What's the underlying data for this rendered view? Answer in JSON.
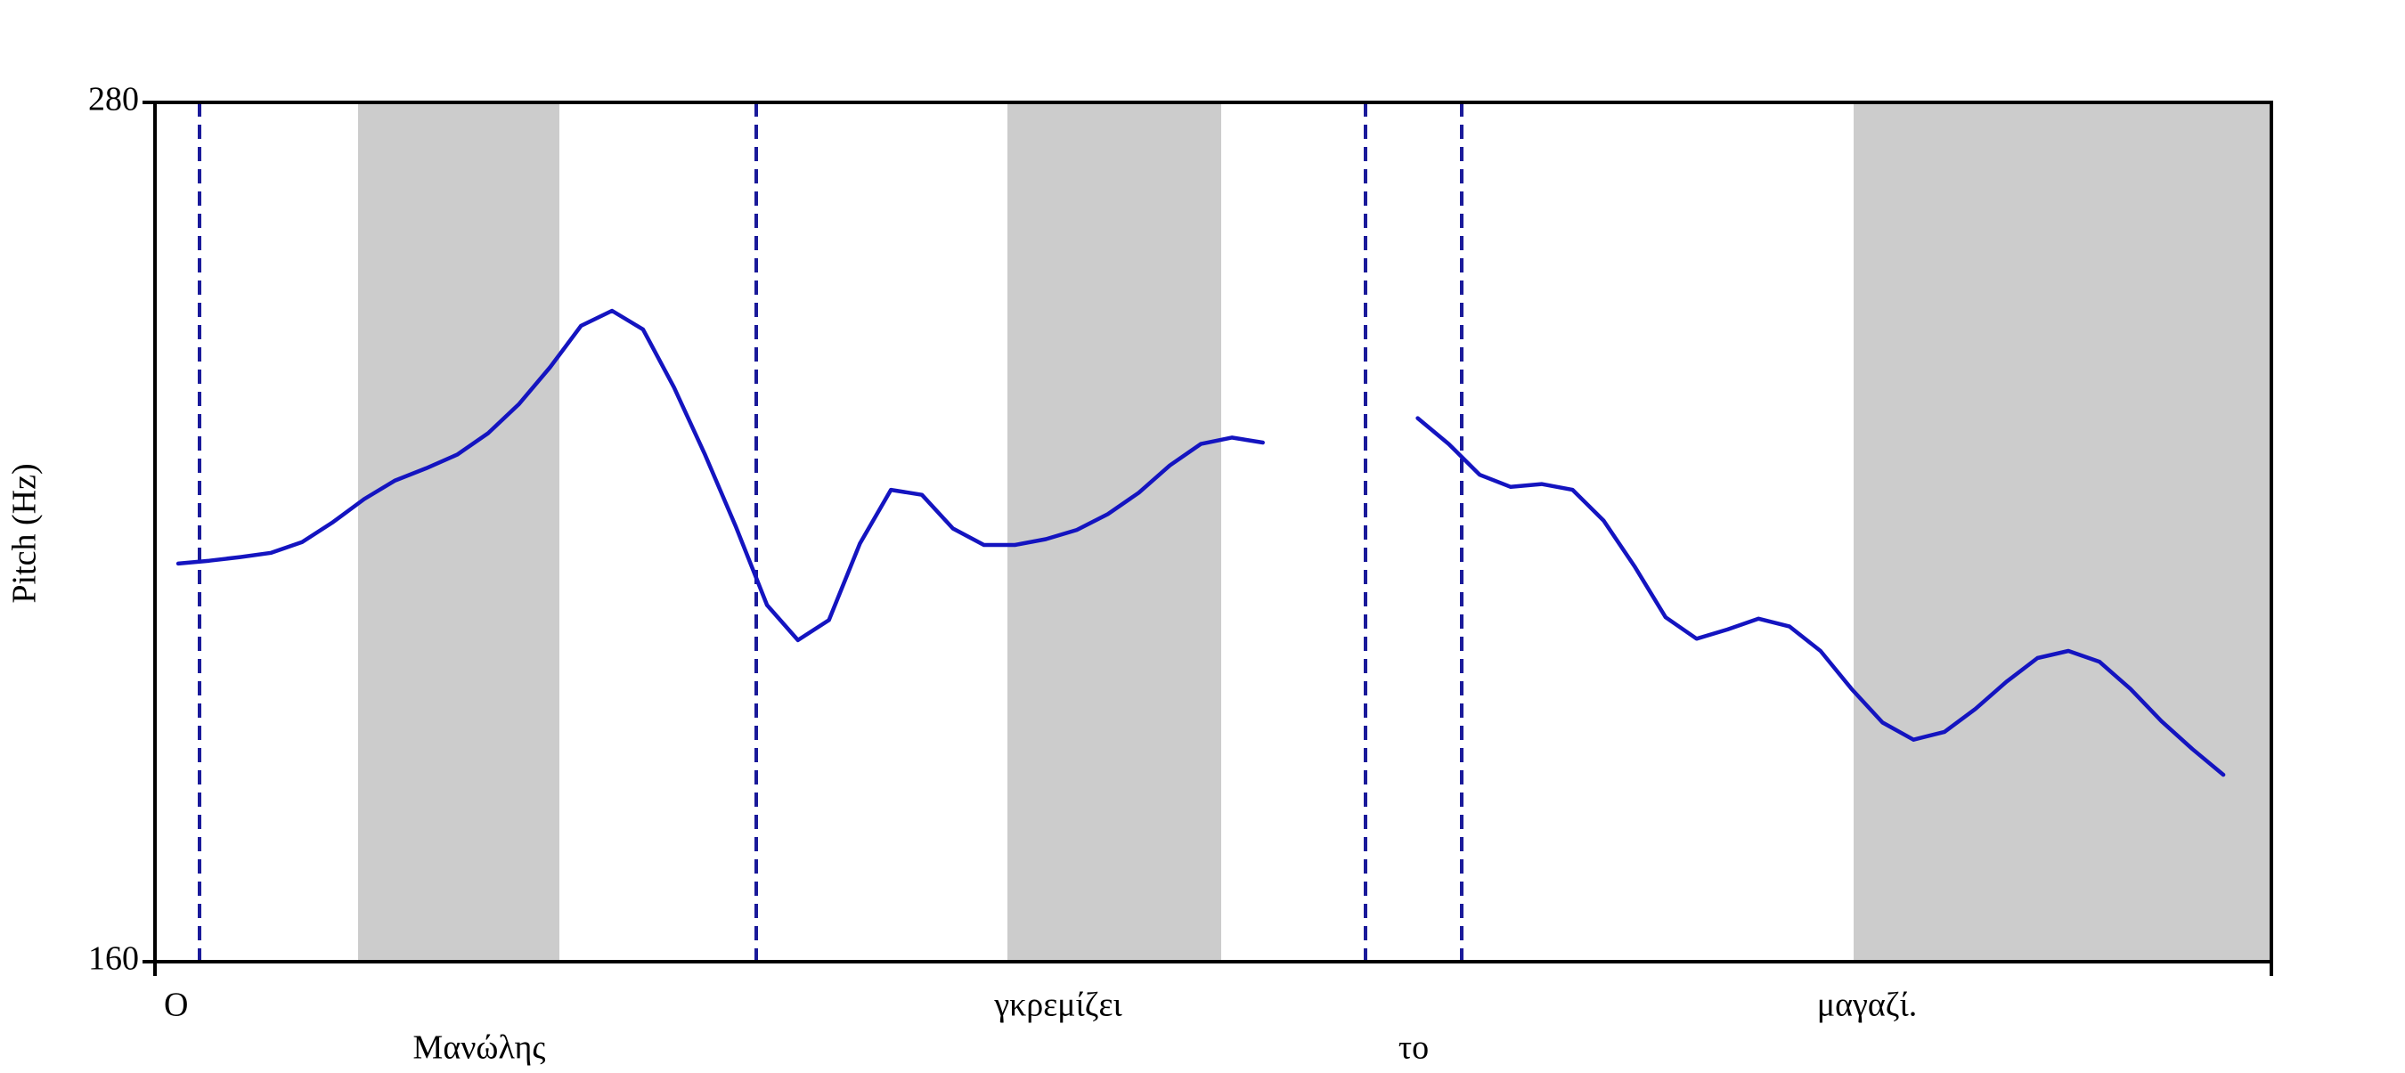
{
  "chart_data": {
    "type": "line",
    "y_label": "Pitch (Hz)",
    "ylim": [
      160,
      280
    ],
    "yticks": [
      160,
      280
    ],
    "words": [
      "Ο",
      "Μανώλης",
      "γκρεμίζει",
      "το",
      "μαγαζί."
    ],
    "series": [
      {
        "color": "#1414c0",
        "values": [
          215.6,
          216.0,
          216.5,
          217.1,
          218.6,
          221.4,
          224.6,
          227.2,
          228.9,
          230.8,
          233.8,
          237.9,
          243.0,
          248.8,
          250.9,
          248.3,
          240.2,
          230.8,
          220.7,
          209.8,
          204.9,
          207.7,
          218.4,
          225.9,
          225.2,
          220.5,
          218.2,
          218.2,
          219.0,
          220.3,
          222.5,
          225.5,
          229.3,
          232.3,
          233.2,
          232.5,
          null,
          null,
          null,
          null,
          235.9,
          232.3,
          228.0,
          226.3,
          226.7,
          225.9,
          221.6,
          215.2,
          208.1,
          205.1,
          206.4,
          207.9,
          206.8,
          203.4,
          198.1,
          193.4,
          191.0,
          192.1,
          195.3,
          199.1,
          202.4,
          203.4,
          201.9,
          198.1,
          193.6,
          189.7,
          186.1
        ]
      }
    ]
  }
}
